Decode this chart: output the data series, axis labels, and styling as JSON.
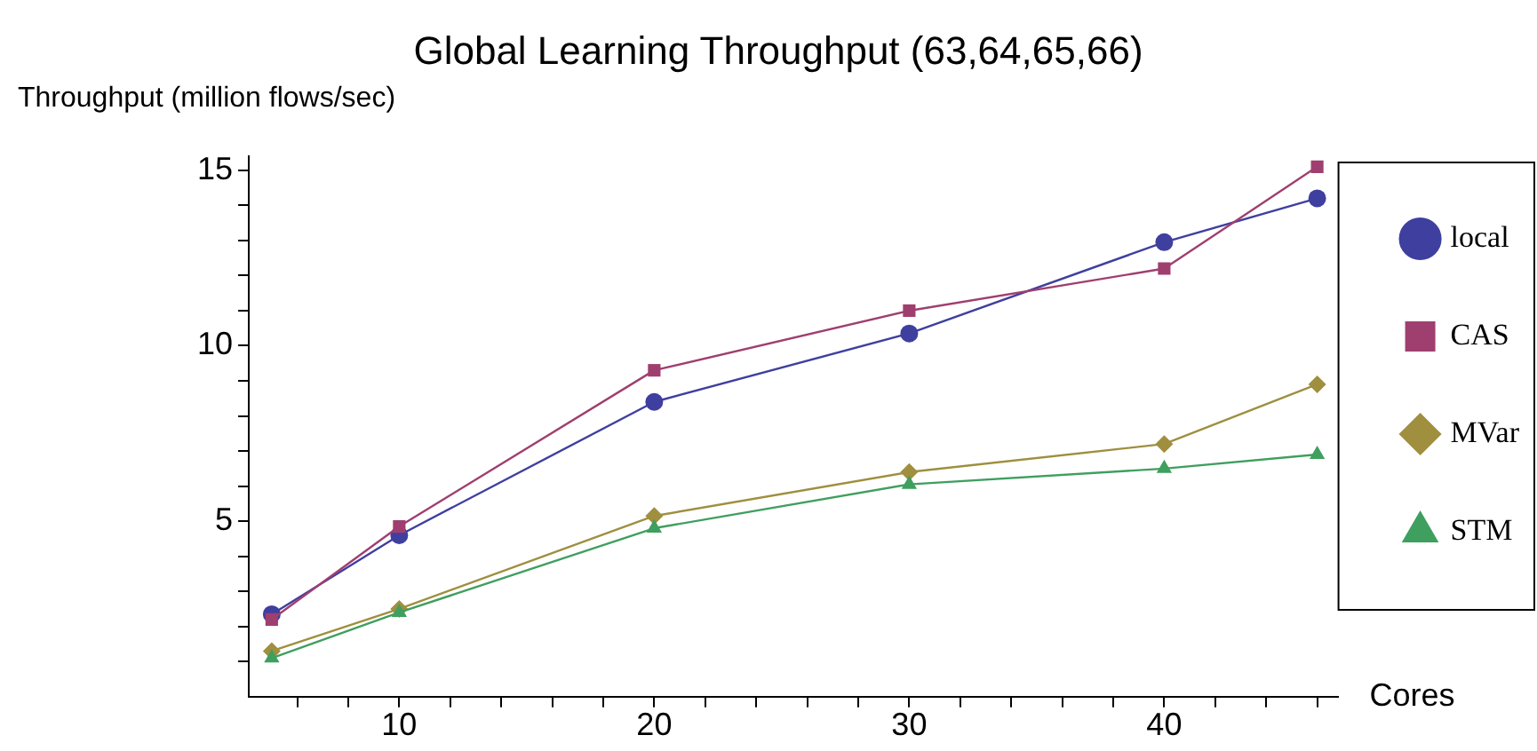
{
  "chart_data": {
    "type": "line",
    "title": "Global Learning Throughput (63,64,65,66)",
    "xlabel": "Cores",
    "ylabel": "Throughput (million flows/sec)",
    "x": [
      5,
      10,
      20,
      30,
      40,
      46
    ],
    "series": [
      {
        "name": "local",
        "color": "#3f3f9f",
        "marker": "circle",
        "values": [
          2.35,
          4.6,
          8.4,
          10.35,
          12.95,
          14.2
        ]
      },
      {
        "name": "CAS",
        "color": "#9f3f6f",
        "marker": "square",
        "values": [
          2.2,
          4.85,
          9.3,
          11.0,
          12.2,
          15.1
        ]
      },
      {
        "name": "MVar",
        "color": "#9f8f3f",
        "marker": "diamond",
        "values": [
          1.3,
          2.5,
          5.15,
          6.4,
          7.2,
          8.9
        ]
      },
      {
        "name": "STM",
        "color": "#3f9f5f",
        "marker": "triangle",
        "values": [
          1.1,
          2.4,
          4.8,
          6.05,
          6.5,
          6.9
        ]
      }
    ],
    "xlim": [
      4.1,
      46.8
    ],
    "ylim": [
      0,
      15.4
    ],
    "xticks": [
      {
        "value": 6,
        "label": null
      },
      {
        "value": 8,
        "label": null
      },
      10,
      {
        "value": 12,
        "label": null
      },
      {
        "value": 14,
        "label": null
      },
      {
        "value": 16,
        "label": null
      },
      {
        "value": 18,
        "label": null
      },
      20,
      {
        "value": 22,
        "label": null
      },
      {
        "value": 24,
        "label": null
      },
      {
        "value": 26,
        "label": null
      },
      {
        "value": 28,
        "label": null
      },
      30,
      {
        "value": 32,
        "label": null
      },
      {
        "value": 34,
        "label": null
      },
      {
        "value": 36,
        "label": null
      },
      {
        "value": 38,
        "label": null
      },
      40,
      {
        "value": 42,
        "label": null
      },
      {
        "value": 44,
        "label": null
      },
      {
        "value": 46,
        "label": null
      }
    ],
    "yticks": [
      {
        "value": 1,
        "label": null
      },
      {
        "value": 2,
        "label": null
      },
      {
        "value": 3,
        "label": null
      },
      {
        "value": 4,
        "label": null
      },
      5,
      {
        "value": 6,
        "label": null
      },
      {
        "value": 7,
        "label": null
      },
      {
        "value": 8,
        "label": null
      },
      {
        "value": 9,
        "label": null
      },
      10,
      {
        "value": 11,
        "label": null
      },
      {
        "value": 12,
        "label": null
      },
      {
        "value": 13,
        "label": null
      },
      {
        "value": 14,
        "label": null
      },
      15
    ],
    "grid": false,
    "legend": "right",
    "line_style": "solid"
  }
}
